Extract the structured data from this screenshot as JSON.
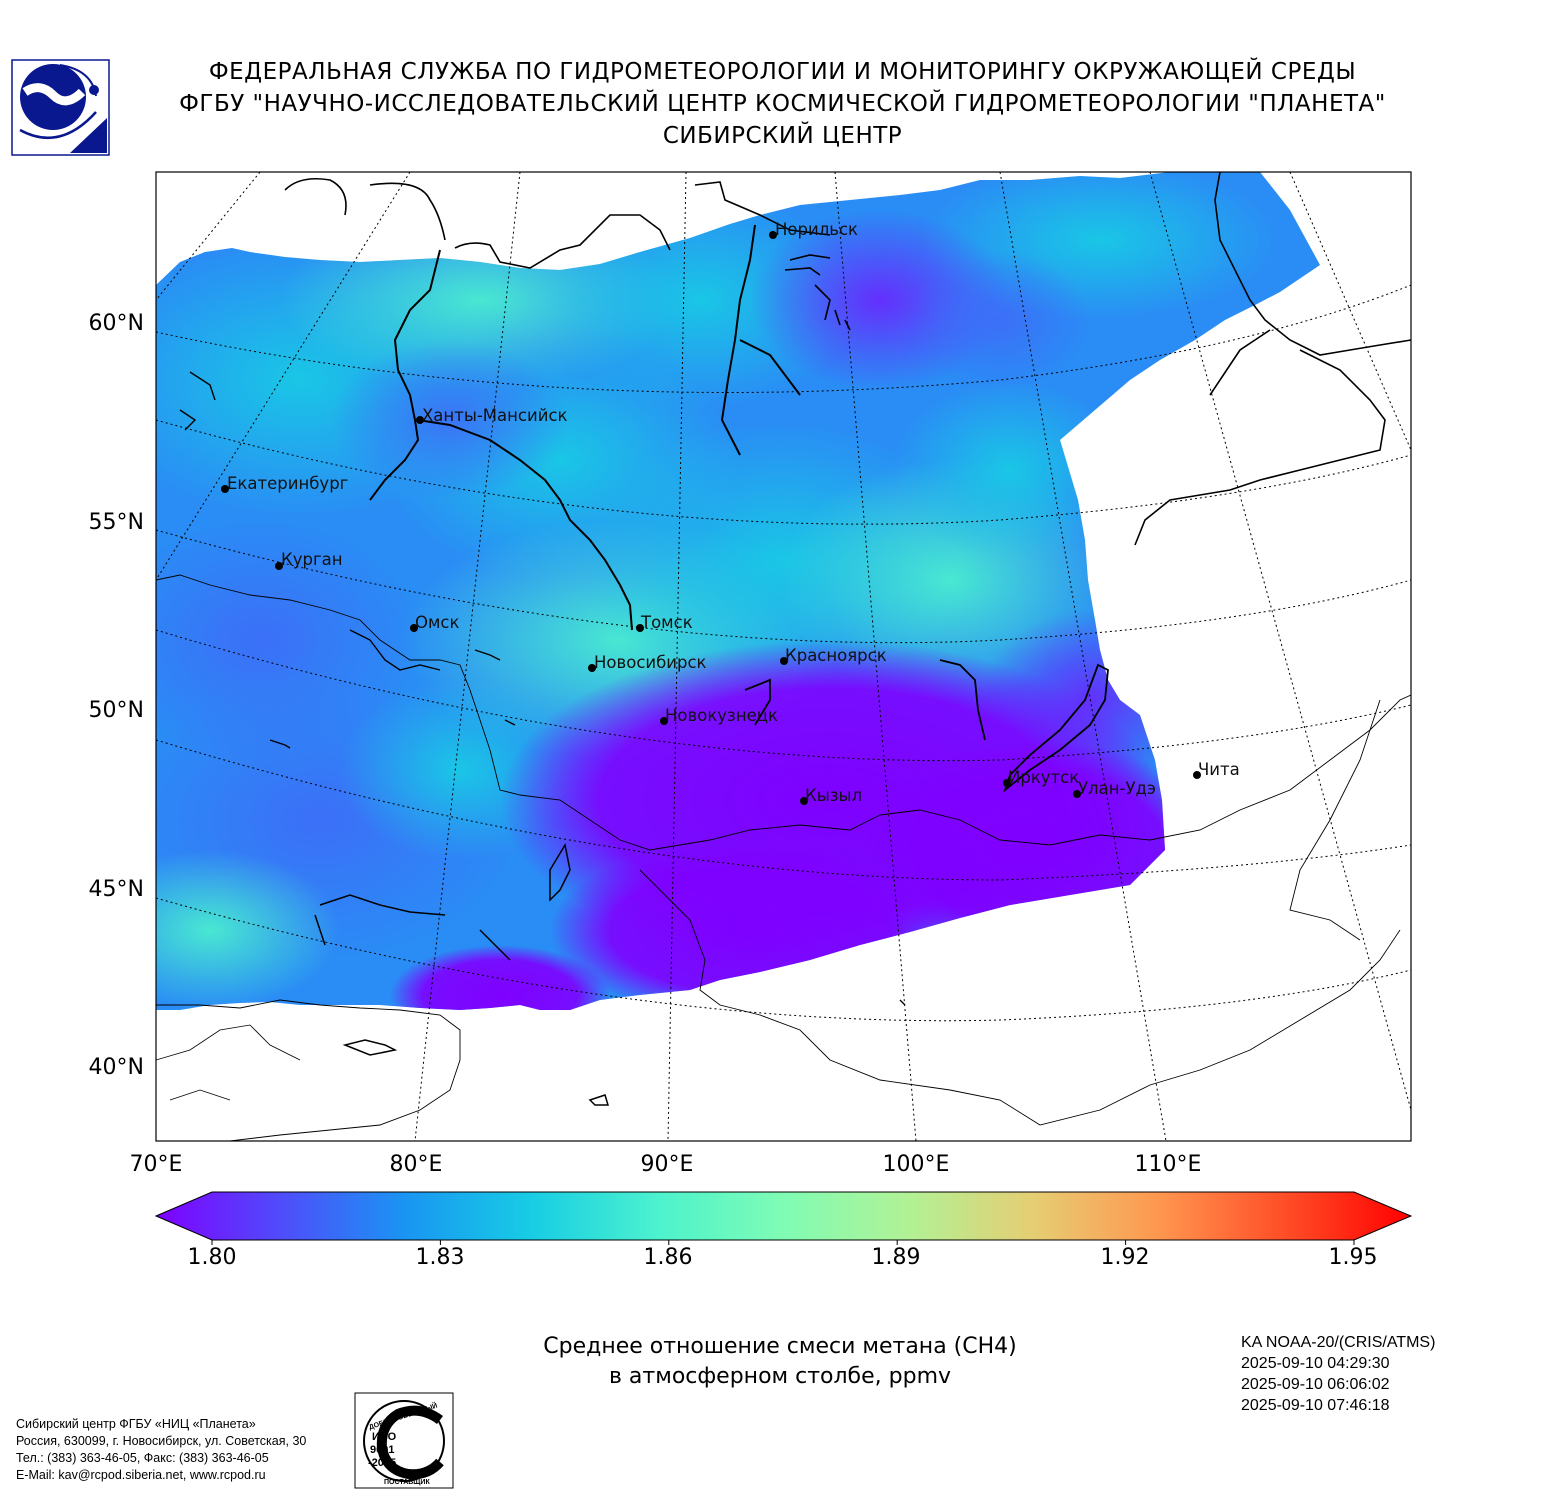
{
  "header": {
    "line1": "ФЕДЕРАЛЬНАЯ СЛУЖБА ПО ГИДРОМЕТЕОРОЛОГИИ И МОНИТОРИНГУ ОКРУЖАЮЩЕЙ СРЕДЫ",
    "line2": "ФГБУ \"НАУЧНО-ИССЛЕДОВАТЕЛЬСКИЙ ЦЕНТР КОСМИЧЕСКОЙ ГИДРОМЕТЕОРОЛОГИИ \"ПЛАНЕТА\"",
    "line3": "СИБИРСКИЙ ЦЕНТР"
  },
  "map": {
    "lat_labels": [
      "60°N",
      "55°N",
      "50°N",
      "45°N",
      "40°N"
    ],
    "lon_labels": [
      "70°E",
      "80°E",
      "90°E",
      "100°E",
      "110°E"
    ],
    "cities": [
      {
        "name": "Норильск"
      },
      {
        "name": "Ханты-Мансийск"
      },
      {
        "name": "Екатеринбург"
      },
      {
        "name": "Курган"
      },
      {
        "name": "Омск"
      },
      {
        "name": "Томск"
      },
      {
        "name": "Новосибирск"
      },
      {
        "name": "Красноярск"
      },
      {
        "name": "Новокузнецк"
      },
      {
        "name": "Кызыл"
      },
      {
        "name": "Иркутск"
      },
      {
        "name": "Улан-Удэ"
      },
      {
        "name": "Чита"
      }
    ]
  },
  "colorbar": {
    "ticks": [
      "1.80",
      "1.83",
      "1.86",
      "1.89",
      "1.92",
      "1.95"
    ],
    "colors": [
      "#7f00ff",
      "#4f4dfb",
      "#1996f2",
      "#18cde4",
      "#4cf2ce",
      "#7ffcb4",
      "#b2f195",
      "#e6cd73",
      "#ff964f",
      "#ff4d27",
      "#ff0000"
    ]
  },
  "caption": {
    "line1": "Среднее отношение смеси метана (CH4)",
    "line2": "в атмосферном столбе, ppmv"
  },
  "satellite": {
    "line1": "KA NOAA-20/(CRIS/ATMS)",
    "line2": "2025-09-10 04:29:30",
    "line3": "2025-09-10 06:06:02",
    "line4": "2025-09-10 07:46:18"
  },
  "footer": {
    "line1": "Сибирский центр ФГБУ «НИЦ «Планета»",
    "line2": "Россия, 630099, г. Новосибирск, ул. Советская, 30",
    "line3": "Тел.: (383) 363-46-05, Факс: (383) 363-46-05",
    "line4": "E-Mail: kav@rcpod.siberia.net, www.rcpod.ru"
  },
  "iso_stamp": {
    "top_text": "ДОБРОСОВЕСТНЫЙ",
    "line1": "ИСО",
    "line2": "9001",
    "line3": "-2015",
    "bottom_text": "ПОСТАВЩИК"
  }
}
